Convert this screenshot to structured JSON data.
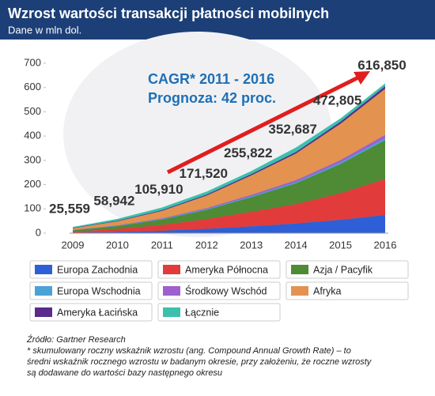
{
  "chart_data": {
    "type": "stacked-area",
    "title": "Wzrost wartości transakcji płatności mobilnych",
    "subtitle": "Dane w mln dol.",
    "annotation": [
      "CAGR* 2011 - 2016",
      "Prognoza: 42 proc."
    ],
    "source": "Źródło: Gartner Research",
    "footnote": [
      "* skumulowany roczny wskaźnik wzrostu (ang. Compound Annual Growth Rate) –   to",
      "średni wskaźnik rocznego wzrostu w badanym okresie, przy założeniu, że roczne wzrosty",
      "są dodawane do wartości bazy następnego okresu"
    ],
    "categories": [
      "2009",
      "2010",
      "2011",
      "2012",
      "2013",
      "2014",
      "2015",
      "2016"
    ],
    "ylim": [
      0,
      700
    ],
    "yticks": [
      0,
      100,
      200,
      300,
      400,
      500,
      600,
      700
    ],
    "series": [
      {
        "name": "Europa Zachodnia",
        "color": "#2f5fd6",
        "values": [
          2,
          5,
          10,
          18,
          28,
          40,
          55,
          75
        ]
      },
      {
        "name": "Ameryka Północna",
        "color": "#e23b3b",
        "values": [
          5,
          13,
          24,
          40,
          60,
          80,
          110,
          148
        ]
      },
      {
        "name": "Azja / Pacyfik",
        "color": "#4f8a35",
        "values": [
          5,
          11,
          22,
          38,
          60,
          85,
          120,
          160
        ]
      },
      {
        "name": "Europa Wschodnia",
        "color": "#4aa3d4",
        "values": [
          0.5,
          1,
          2,
          3,
          4,
          5,
          6,
          8
        ]
      },
      {
        "name": "Środkowy Wschód",
        "color": "#a05fd0",
        "values": [
          1,
          2,
          3,
          4,
          6,
          8,
          10,
          14
        ]
      },
      {
        "name": "Afryka",
        "color": "#e39250",
        "values": [
          7,
          17,
          31,
          52,
          80,
          110,
          150,
          190
        ]
      },
      {
        "name": "Ameryka Łacińska",
        "color": "#5a2a8c",
        "values": [
          1,
          2,
          3,
          4,
          5,
          6,
          8,
          10
        ]
      }
    ],
    "total": {
      "name": "Łącznie",
      "color": "#3cc0ad",
      "values": [
        25.559,
        58.942,
        105.91,
        171.52,
        255.822,
        352.687,
        472.805,
        616.85
      ],
      "value_labels": [
        "25,559",
        "58,942",
        "105,910",
        "171,520",
        "255,822",
        "352,687",
        "472,805",
        "616,850"
      ]
    }
  }
}
